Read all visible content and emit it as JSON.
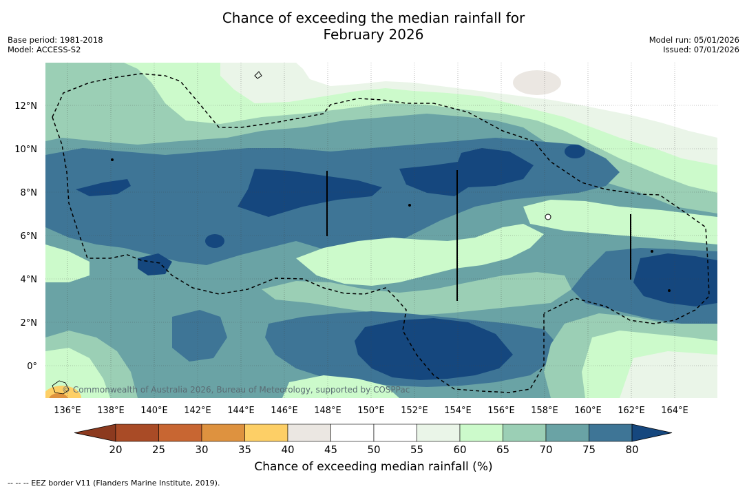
{
  "title": {
    "line1": "Chance of exceeding the median rainfall for",
    "line2": "February 2026"
  },
  "meta_left": {
    "base_period": "Base period: 1981-2018",
    "model": "Model: ACCESS-S2"
  },
  "meta_right": {
    "model_run": "Model run: 05/01/2026",
    "issued": "Issued: 07/01/2026"
  },
  "map": {
    "lon_labels": [
      "136°E",
      "138°E",
      "140°E",
      "142°E",
      "144°E",
      "146°E",
      "148°E",
      "150°E",
      "152°E",
      "154°E",
      "156°E",
      "158°E",
      "160°E",
      "162°E",
      "164°E"
    ],
    "lat_labels": [
      "12°N",
      "10°N",
      "8°N",
      "6°N",
      "4°N",
      "2°N",
      "0°"
    ],
    "copyright": "© Commonwealth of Australia 2026, Bureau of Meteorology, supported by COSPPac"
  },
  "colorbar": {
    "ticks": [
      "20",
      "25",
      "30",
      "35",
      "40",
      "45",
      "50",
      "55",
      "60",
      "65",
      "70",
      "75",
      "80"
    ],
    "under_color": "#8c3a1f",
    "over_color": "#15477e",
    "colors": [
      "#a94b26",
      "#c86632",
      "#de923f",
      "#fdcf66",
      "#ebe7e2",
      "#ffffff",
      "#ffffff",
      "#eaf5e8",
      "#ccfacb",
      "#9bcfb5",
      "#6aa3a5",
      "#3e7596"
    ],
    "label": "Chance of exceeding median rainfall (%)"
  },
  "footnote": "-- -- -- EEZ border V11 (Flanders Marine Institute, 2019).",
  "colors": {
    "c75": "#3e7596",
    "c80": "#15477e",
    "c70": "#6aa3a5",
    "c65": "#9bcfb5",
    "c60": "#ccfacb",
    "c55": "#eaf5e8",
    "c40": "#ebe7e2"
  }
}
